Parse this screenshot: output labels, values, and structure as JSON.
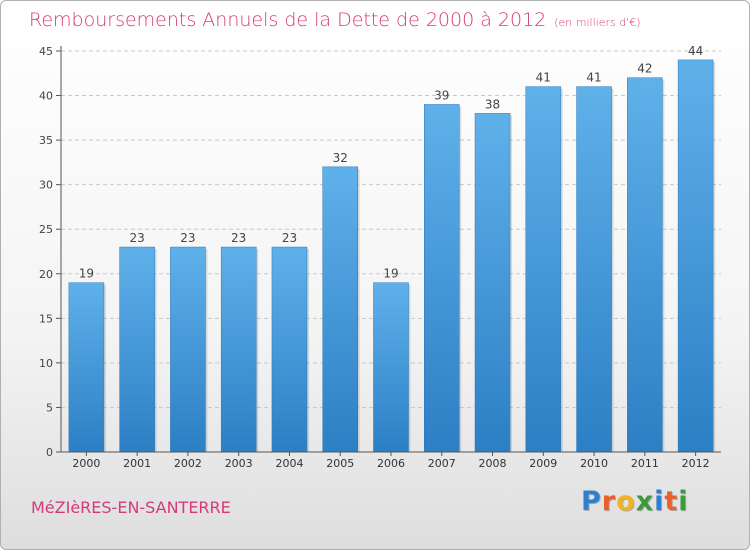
{
  "header": {
    "title": "Remboursements Annuels de la Dette de 2000 à 2012",
    "unit": "(en milliers d'€)"
  },
  "footer": {
    "place": "MéZIèRES-EN-SANTERRE",
    "logo_letters": [
      "P",
      "r",
      "o",
      "x",
      "i",
      "t",
      "i"
    ],
    "logo_colors": [
      "#2e7fd0",
      "#e8612c",
      "#f0b323",
      "#3d9a3a",
      "#2e7fd0",
      "#e8612c",
      "#3d9a3a"
    ]
  },
  "chart_data": {
    "type": "bar",
    "title": "Remboursements Annuels de la Dette de 2000 à 2012",
    "categories": [
      "2000",
      "2001",
      "2002",
      "2003",
      "2004",
      "2005",
      "2006",
      "2007",
      "2008",
      "2009",
      "2010",
      "2011",
      "2012"
    ],
    "values": [
      19,
      23,
      23,
      23,
      23,
      32,
      19,
      39,
      38,
      41,
      41,
      42,
      44
    ],
    "data_labels": [
      "19",
      "23",
      "23",
      "23",
      "23",
      "32",
      "19",
      "39",
      "38",
      "41",
      "41",
      "42",
      "44"
    ],
    "yticks": [
      "0",
      "5",
      "10",
      "15",
      "20",
      "25",
      "30",
      "35",
      "40",
      "45"
    ],
    "ylim": [
      0,
      45
    ],
    "grid": true,
    "bar_color": "#4a9fe0"
  }
}
